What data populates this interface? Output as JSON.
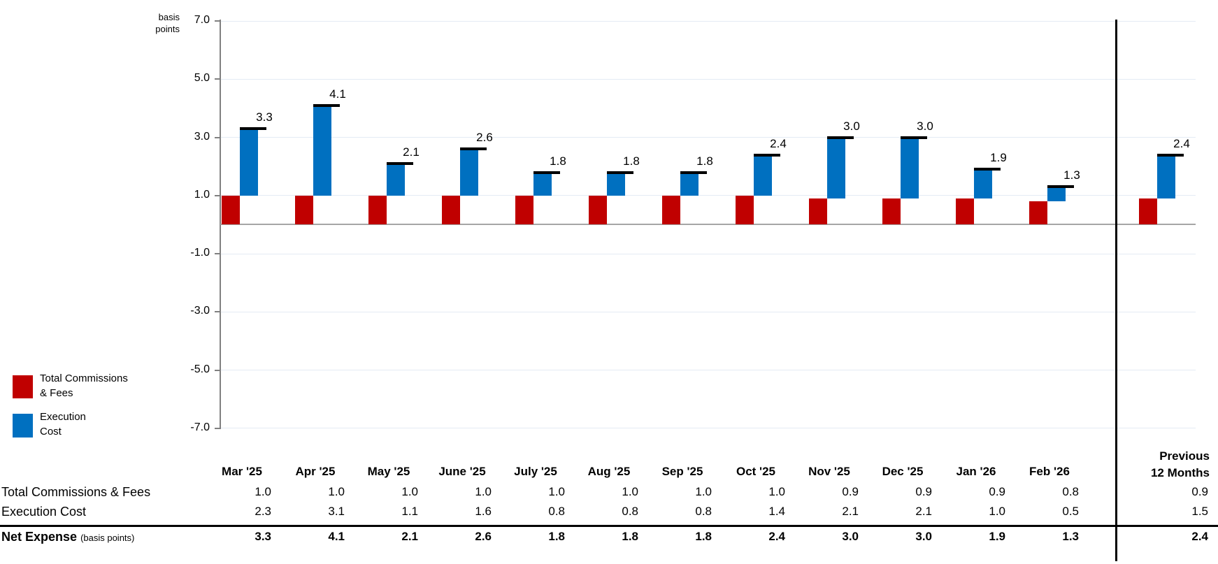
{
  "chart_data": {
    "type": "bar",
    "subtype": "stacked-column-with-net-marker",
    "title": "",
    "ylabel": "basis points",
    "ylim": [
      -7.0,
      7.0
    ],
    "yticks": [
      7.0,
      5.0,
      3.0,
      1.0,
      -1.0,
      -3.0,
      -5.0,
      -7.0
    ],
    "grid": "horizontal-light",
    "categories": [
      "Mar '25",
      "Apr '25",
      "May '25",
      "June '25",
      "July '25",
      "Aug '25",
      "Sep '25",
      "Oct '25",
      "Nov '25",
      "Dec '25",
      "Jan '26",
      "Feb '26",
      "Previous 12 Months"
    ],
    "series": [
      {
        "name": "Total Commissions & Fees",
        "color": "#C00000",
        "values": [
          1.0,
          1.0,
          1.0,
          1.0,
          1.0,
          1.0,
          1.0,
          1.0,
          0.9,
          0.9,
          0.9,
          0.8,
          0.9
        ]
      },
      {
        "name": "Execution Cost",
        "color": "#0070C0",
        "values": [
          2.3,
          3.1,
          1.1,
          1.6,
          0.8,
          0.8,
          0.8,
          1.4,
          2.1,
          2.1,
          1.0,
          0.5,
          1.5
        ]
      },
      {
        "name": "Net Expense (basis points)",
        "marker_color": "#000000",
        "values": [
          3.3,
          4.1,
          2.1,
          2.6,
          1.8,
          1.8,
          1.8,
          2.4,
          3.0,
          3.0,
          1.9,
          1.3,
          2.4
        ]
      }
    ],
    "bar_labels": [
      "3.3",
      "4.1",
      "2.1",
      "2.6",
      "1.8",
      "1.8",
      "1.8",
      "2.4",
      "3.0",
      "3.0",
      "1.9",
      "1.3",
      "2.4"
    ],
    "legend_position": "bottom-left"
  },
  "legend": {
    "items": [
      {
        "label": "Total Commissions & Fees",
        "color": "#C00000"
      },
      {
        "label": "Execution Cost",
        "color": "#0070C0"
      }
    ]
  },
  "table": {
    "month_headers": [
      "Mar '25",
      "Apr '25",
      "May '25",
      "June '25",
      "July '25",
      "Aug '25",
      "Sep '25",
      "Oct '25",
      "Nov '25",
      "Dec '25",
      "Jan '26",
      "Feb '26"
    ],
    "prev_header_line1": "Previous",
    "prev_header_line2": "12 Months",
    "rows": [
      {
        "label": "Total Commissions & Fees",
        "bold": false,
        "values": [
          "1.0",
          "1.0",
          "1.0",
          "1.0",
          "1.0",
          "1.0",
          "1.0",
          "1.0",
          "0.9",
          "0.9",
          "0.9",
          "0.8"
        ],
        "prev": "0.9"
      },
      {
        "label": "Execution Cost",
        "bold": false,
        "values": [
          "2.3",
          "3.1",
          "1.1",
          "1.6",
          "0.8",
          "0.8",
          "0.8",
          "1.4",
          "2.1",
          "2.1",
          "1.0",
          "0.5"
        ],
        "prev": "1.5"
      },
      {
        "label": "Net Expense",
        "label_suffix": "(basis points)",
        "bold": true,
        "values": [
          "3.3",
          "4.1",
          "2.1",
          "2.6",
          "1.8",
          "1.8",
          "1.8",
          "2.4",
          "3.0",
          "3.0",
          "1.9",
          "1.3"
        ],
        "prev": "2.4"
      }
    ]
  },
  "colors": {
    "commissions": "#C00000",
    "execution": "#0070C0",
    "net_marker": "#000000",
    "gridline": "#E4EBF4",
    "zero_line": "#A6A6A6",
    "axis": "#808080",
    "divider": "#000000"
  }
}
